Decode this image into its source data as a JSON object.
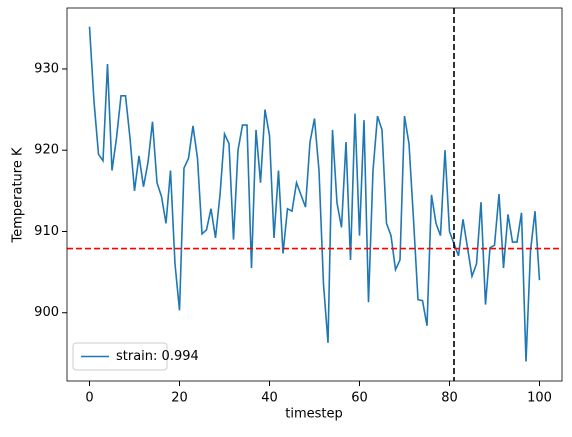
{
  "chart_data": {
    "type": "line",
    "xlabel": "timestep",
    "ylabel": "Temperature K",
    "x": [
      0,
      1,
      2,
      3,
      4,
      5,
      6,
      7,
      8,
      9,
      10,
      11,
      12,
      13,
      14,
      15,
      16,
      17,
      18,
      19,
      20,
      21,
      22,
      23,
      24,
      25,
      26,
      27,
      28,
      29,
      30,
      31,
      32,
      33,
      34,
      35,
      36,
      37,
      38,
      39,
      40,
      41,
      42,
      43,
      44,
      45,
      46,
      47,
      48,
      49,
      50,
      51,
      52,
      53,
      54,
      55,
      56,
      57,
      58,
      59,
      60,
      61,
      62,
      63,
      64,
      65,
      66,
      67,
      68,
      69,
      70,
      71,
      72,
      73,
      74,
      75,
      76,
      77,
      78,
      79,
      80,
      81,
      82,
      83,
      84,
      85,
      86,
      87,
      88,
      89,
      90,
      91,
      92,
      93,
      94,
      95,
      96,
      97,
      98,
      99,
      100
    ],
    "series": [
      {
        "name": "strain: 0.994",
        "color": "#1f77b4",
        "values": [
          935.2,
          926,
          919.5,
          918.7,
          930.6,
          917.5,
          921.5,
          926.7,
          926.7,
          921.5,
          915,
          919.3,
          915.5,
          918.5,
          923.5,
          916,
          914.3,
          911,
          917.5,
          906,
          900.3,
          917.8,
          919,
          923,
          919,
          909.7,
          910.2,
          912.8,
          909.2,
          914.5,
          922,
          920.8,
          909,
          920,
          923.1,
          923.1,
          905.5,
          922.5,
          916,
          925,
          921.8,
          909.2,
          917.5,
          907.3,
          912.8,
          912.5,
          916,
          914.5,
          913,
          921,
          923.9,
          917.5,
          903.5,
          896.3,
          922.5,
          913.5,
          910.5,
          921,
          906.5,
          924.5,
          909.5,
          923.7,
          901.3,
          917.5,
          924.2,
          922.5,
          911,
          909.5,
          905.3,
          906.5,
          924.2,
          920.8,
          911.5,
          901.6,
          901.5,
          898.4,
          914.5,
          911,
          909.5,
          920,
          910,
          908.5,
          907,
          911.5,
          908,
          904.5,
          906,
          913.6,
          901,
          908,
          908.3,
          914.6,
          905.5,
          912.1,
          908.7,
          908.7,
          912.3,
          894,
          907.6,
          912.5,
          904
        ]
      }
    ],
    "hline": {
      "value": 907.9,
      "color": "#ff0000"
    },
    "vline": {
      "value": 81,
      "color": "#000000"
    },
    "xlim": [
      -5,
      105
    ],
    "ylim": [
      891.6,
      937.5
    ],
    "xticks": [
      0,
      20,
      40,
      60,
      80,
      100
    ],
    "yticks": [
      900,
      910,
      920,
      930
    ],
    "legend": "lower left"
  }
}
